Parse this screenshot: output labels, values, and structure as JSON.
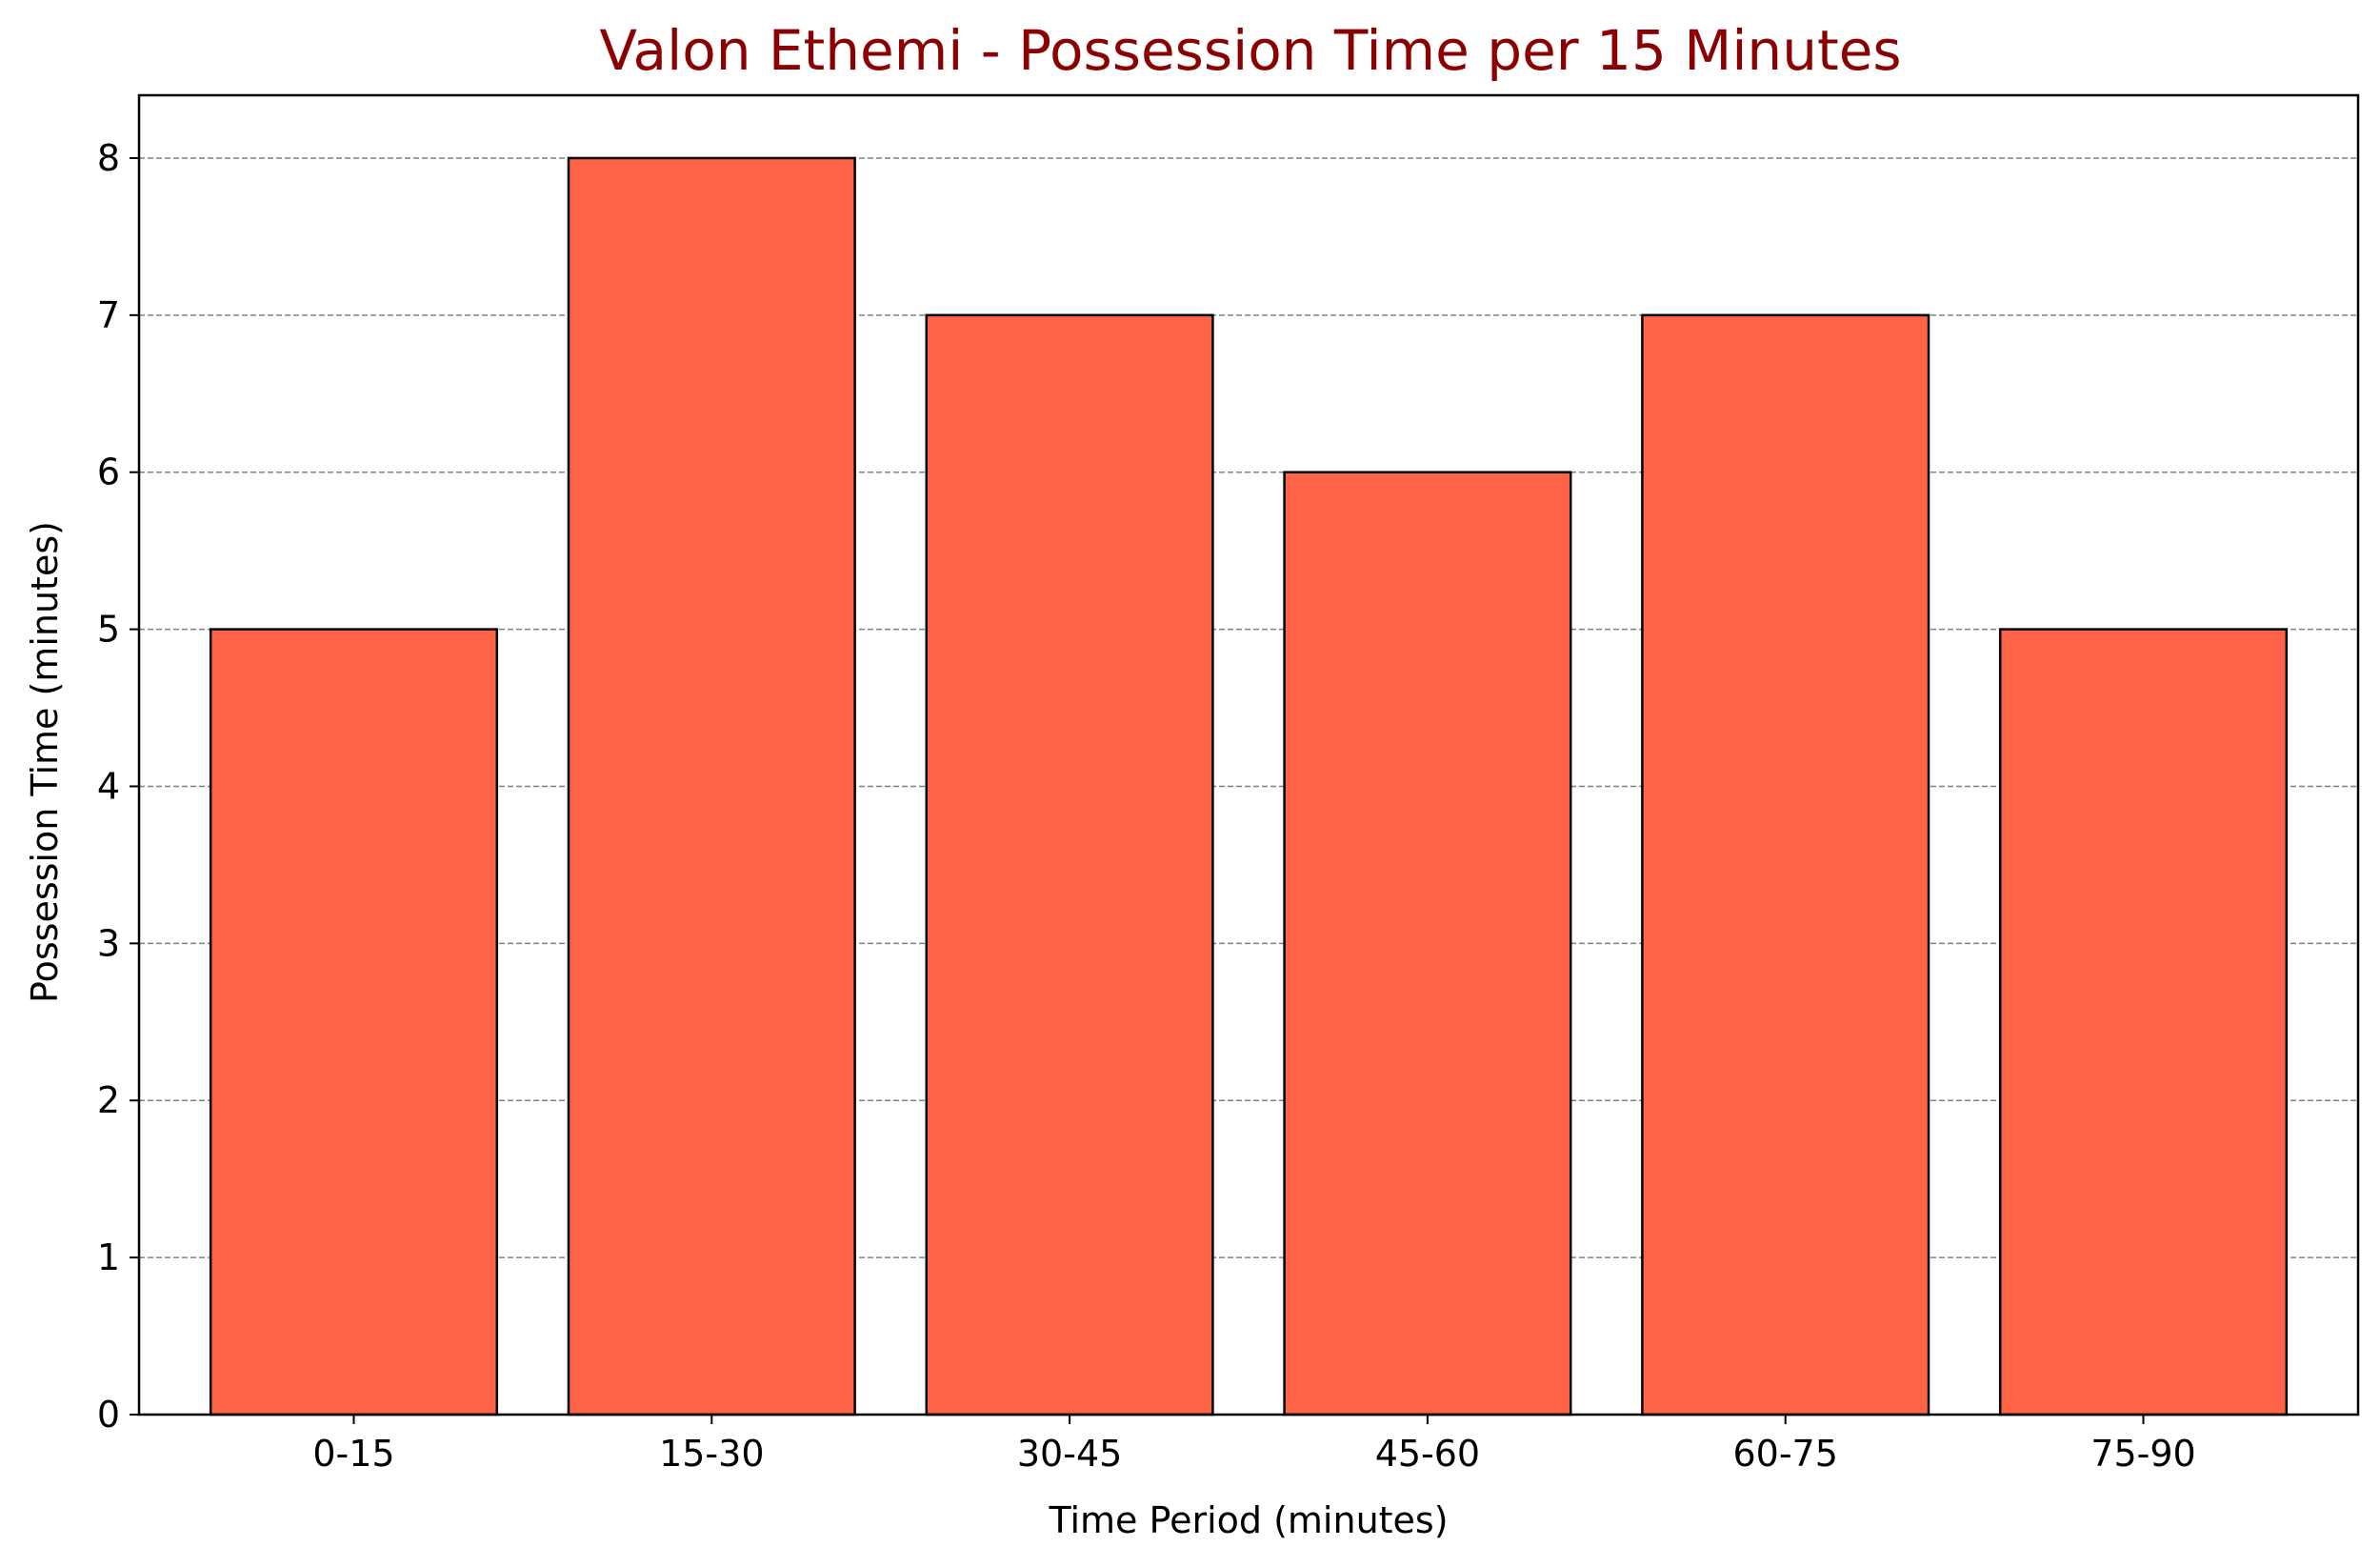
{
  "chart_data": {
    "type": "bar",
    "title": "Valon Ethemi - Possession Time per 15 Minutes",
    "xlabel": "Time Period (minutes)",
    "ylabel": "Possession Time (minutes)",
    "categories": [
      "0-15",
      "15-30",
      "30-45",
      "45-60",
      "60-75",
      "75-90"
    ],
    "values": [
      5,
      8,
      7,
      6,
      7,
      5
    ],
    "ylim": [
      0,
      8.4
    ],
    "yticks": [
      "0",
      "1",
      "2",
      "3",
      "4",
      "5",
      "6",
      "7",
      "8"
    ],
    "grid": "horizontal dashed",
    "legend": "none",
    "colors": {
      "bar_fill": "#ff6347",
      "bar_edge": "#000000",
      "title": "#8b0000",
      "grid": "#808080"
    }
  }
}
